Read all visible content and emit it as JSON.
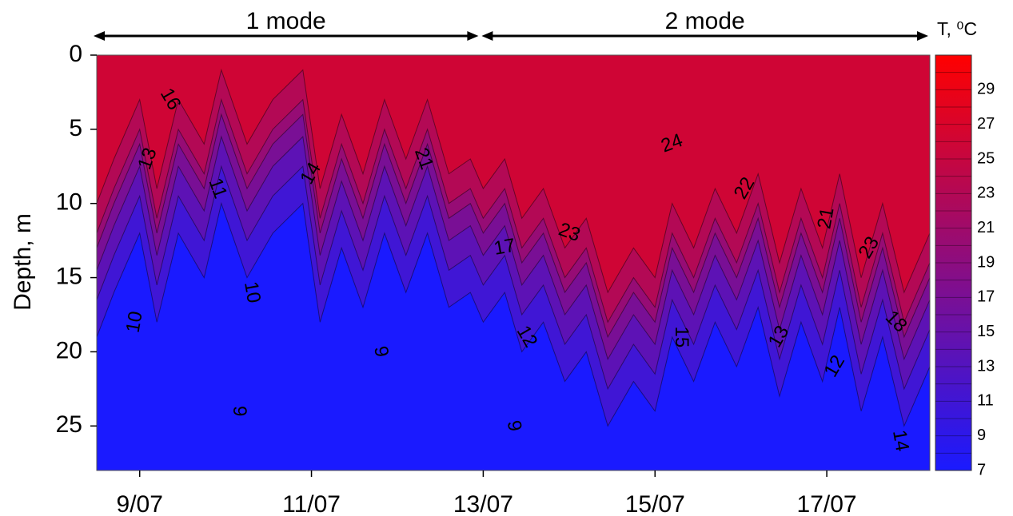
{
  "chart_data": {
    "type": "heatmap",
    "ylabel": "Depth, m",
    "xlabel": "",
    "x_tick_labels": [
      "9/07",
      "11/07",
      "13/07",
      "15/07",
      "17/07"
    ],
    "x_tick_days": [
      9,
      11,
      13,
      15,
      17
    ],
    "x_range_days": [
      8.5,
      18.2
    ],
    "y_ticks": [
      0,
      5,
      10,
      15,
      20,
      25
    ],
    "y_range": [
      0,
      28
    ],
    "y_inverted": true,
    "colorbar": {
      "title": "T, ⁰C",
      "ticks": [
        7,
        9,
        11,
        13,
        15,
        17,
        19,
        21,
        23,
        25,
        27,
        29
      ],
      "range": [
        7,
        31
      ],
      "color_low": "#1a1aff",
      "color_high": "#ff0000"
    },
    "modes": [
      {
        "label": "1 mode",
        "from_day": 8.5,
        "to_day": 13.0
      },
      {
        "label": "2 mode",
        "from_day": 13.0,
        "to_day": 18.2
      }
    ],
    "thermocline_depth": [
      {
        "day": 8.5,
        "depth": 12
      },
      {
        "day": 8.7,
        "depth": 9
      },
      {
        "day": 9.0,
        "depth": 5
      },
      {
        "day": 9.2,
        "depth": 11
      },
      {
        "day": 9.45,
        "depth": 5
      },
      {
        "day": 9.75,
        "depth": 8
      },
      {
        "day": 9.95,
        "depth": 3
      },
      {
        "day": 10.25,
        "depth": 8
      },
      {
        "day": 10.55,
        "depth": 5
      },
      {
        "day": 10.9,
        "depth": 3
      },
      {
        "day": 11.1,
        "depth": 11
      },
      {
        "day": 11.35,
        "depth": 6
      },
      {
        "day": 11.6,
        "depth": 10
      },
      {
        "day": 11.85,
        "depth": 5
      },
      {
        "day": 12.1,
        "depth": 9
      },
      {
        "day": 12.35,
        "depth": 5
      },
      {
        "day": 12.6,
        "depth": 10
      },
      {
        "day": 12.85,
        "depth": 9
      },
      {
        "day": 13.0,
        "depth": 11
      },
      {
        "day": 13.25,
        "depth": 9
      },
      {
        "day": 13.45,
        "depth": 13
      },
      {
        "day": 13.7,
        "depth": 11
      },
      {
        "day": 13.95,
        "depth": 15
      },
      {
        "day": 14.2,
        "depth": 13
      },
      {
        "day": 14.45,
        "depth": 18
      },
      {
        "day": 14.75,
        "depth": 15
      },
      {
        "day": 15.0,
        "depth": 17
      },
      {
        "day": 15.2,
        "depth": 12
      },
      {
        "day": 15.45,
        "depth": 15
      },
      {
        "day": 15.7,
        "depth": 11
      },
      {
        "day": 15.95,
        "depth": 14
      },
      {
        "day": 16.2,
        "depth": 10
      },
      {
        "day": 16.45,
        "depth": 16
      },
      {
        "day": 16.7,
        "depth": 11
      },
      {
        "day": 16.95,
        "depth": 15
      },
      {
        "day": 17.15,
        "depth": 10
      },
      {
        "day": 17.4,
        "depth": 17
      },
      {
        "day": 17.65,
        "depth": 12
      },
      {
        "day": 17.9,
        "depth": 18
      },
      {
        "day": 18.2,
        "depth": 14
      }
    ],
    "contour_labels": [
      {
        "text": "16",
        "day": 9.35,
        "depth": 3,
        "angle": 60
      },
      {
        "text": "13",
        "day": 9.1,
        "depth": 7,
        "angle": -70
      },
      {
        "text": "11",
        "day": 9.9,
        "depth": 9,
        "angle": 70
      },
      {
        "text": "14",
        "day": 11.0,
        "depth": 8,
        "angle": -60
      },
      {
        "text": "21",
        "day": 12.3,
        "depth": 7,
        "angle": 70
      },
      {
        "text": "10",
        "day": 8.95,
        "depth": 18,
        "angle": -80
      },
      {
        "text": "10",
        "day": 10.3,
        "depth": 16,
        "angle": 80
      },
      {
        "text": "9",
        "day": 11.8,
        "depth": 20,
        "angle": 80
      },
      {
        "text": "9",
        "day": 10.15,
        "depth": 24,
        "angle": 90
      },
      {
        "text": "17",
        "day": 13.25,
        "depth": 13,
        "angle": -10
      },
      {
        "text": "23",
        "day": 14.0,
        "depth": 12,
        "angle": 20
      },
      {
        "text": "12",
        "day": 13.5,
        "depth": 19,
        "angle": 60
      },
      {
        "text": "9",
        "day": 13.35,
        "depth": 25,
        "angle": 80
      },
      {
        "text": "24",
        "day": 15.2,
        "depth": 6,
        "angle": -20
      },
      {
        "text": "15",
        "day": 15.3,
        "depth": 19,
        "angle": 90
      },
      {
        "text": "22",
        "day": 16.05,
        "depth": 9,
        "angle": -60
      },
      {
        "text": "13",
        "day": 16.45,
        "depth": 19,
        "angle": -60
      },
      {
        "text": "21",
        "day": 17.0,
        "depth": 11,
        "angle": -80
      },
      {
        "text": "23",
        "day": 17.5,
        "depth": 13,
        "angle": -60
      },
      {
        "text": "18",
        "day": 17.8,
        "depth": 18,
        "angle": 45
      },
      {
        "text": "12",
        "day": 17.1,
        "depth": 21,
        "angle": -60
      },
      {
        "text": "14",
        "day": 17.85,
        "depth": 26,
        "angle": 80
      }
    ]
  }
}
